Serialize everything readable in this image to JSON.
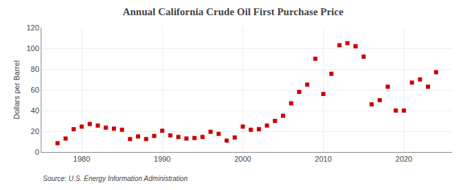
{
  "chart_data": {
    "type": "scatter",
    "title": "Annual California Crude Oil First Purchase Price",
    "ylabel": "Dollars per Barrel",
    "annotations": [
      "Source: U.S. Energy Information Administration"
    ],
    "x": [
      1977,
      1978,
      1979,
      1980,
      1981,
      1982,
      1983,
      1984,
      1985,
      1986,
      1987,
      1988,
      1989,
      1990,
      1991,
      1992,
      1993,
      1994,
      1995,
      1996,
      1997,
      1998,
      1999,
      2000,
      2001,
      2002,
      2003,
      2004,
      2005,
      2006,
      2007,
      2008,
      2009,
      2010,
      2011,
      2012,
      2013,
      2014,
      2015,
      2016,
      2017,
      2018,
      2019,
      2020,
      2021,
      2022,
      2023,
      2024
    ],
    "values": [
      8.5,
      13.0,
      22.0,
      24.5,
      27.0,
      25.5,
      23.5,
      22.5,
      21.5,
      12.5,
      15.0,
      12.5,
      15.5,
      20.5,
      16.0,
      14.5,
      13.0,
      13.5,
      14.5,
      19.5,
      17.5,
      11.0,
      14.0,
      24.5,
      21.5,
      22.0,
      25.5,
      30.0,
      35.0,
      47.0,
      58.0,
      65.0,
      90.0,
      56.0,
      75.5,
      103.0,
      105.0,
      102.0,
      92.0,
      46.0,
      50.0,
      63.0,
      40.0,
      40.0,
      67.0,
      70.0,
      63.0,
      77.0
    ],
    "color": "#cc0000",
    "marker": "square",
    "xlim": [
      1975,
      2026
    ],
    "xticks": [
      1980,
      1990,
      2000,
      2010,
      2020
    ],
    "ylim": [
      0,
      120
    ],
    "yticks": [
      0,
      20,
      40,
      60,
      80,
      100,
      120
    ],
    "grid": true
  }
}
